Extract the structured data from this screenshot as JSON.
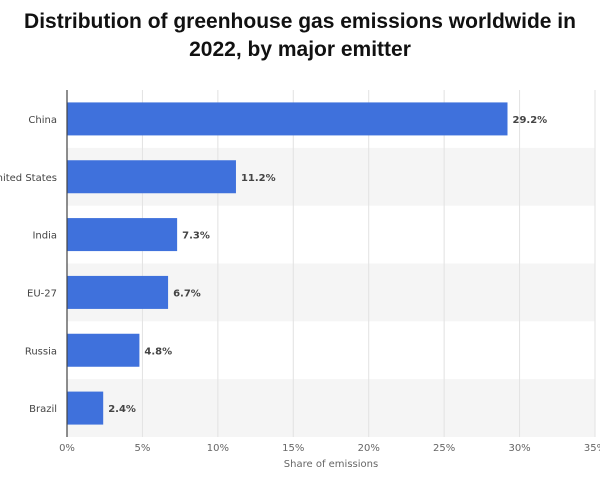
{
  "title": "Distribution of greenhouse gas emissions worldwide in 2022, by major emitter",
  "chart_data": {
    "type": "bar",
    "orientation": "horizontal",
    "title": "Distribution of greenhouse gas emissions worldwide in 2022, by major emitter",
    "categories": [
      "China",
      "United States",
      "India",
      "EU-27",
      "Russia",
      "Brazil"
    ],
    "values": [
      29.2,
      11.2,
      7.3,
      6.7,
      4.8,
      2.4
    ],
    "value_labels": [
      "29.2%",
      "11.2%",
      "7.3%",
      "6.7%",
      "4.8%",
      "2.4%"
    ],
    "xlabel": "Share of emissions",
    "ylabel": "",
    "xlim": [
      0,
      35
    ],
    "x_ticks": [
      0,
      5,
      10,
      15,
      20,
      25,
      30,
      35
    ],
    "x_tick_labels": [
      "0%",
      "5%",
      "10%",
      "15%",
      "20%",
      "25%",
      "30%",
      "35%"
    ],
    "grid": true,
    "legend": "none",
    "bar_color": "#3f71dc",
    "band_color": "#f5f5f5"
  }
}
